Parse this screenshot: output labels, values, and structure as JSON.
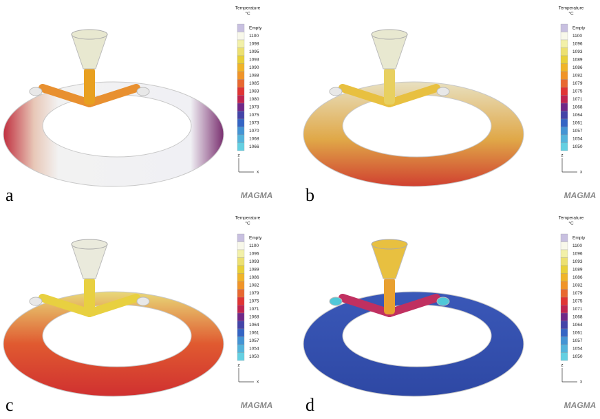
{
  "panels": [
    {
      "label": "a",
      "logo": "MAGMA",
      "axes": {
        "z": "z",
        "x": "x"
      },
      "legend": {
        "title": "Temperature",
        "unit": "°C",
        "entries": [
          "Empty",
          "1100",
          "1098",
          "1095",
          "1093",
          "1090",
          "1088",
          "1085",
          "1083",
          "1080",
          "1078",
          "1075",
          "1073",
          "1070",
          "1068",
          "1066"
        ],
        "colors": [
          "#c8c0e0",
          "#f8f8ea",
          "#f2f0a8",
          "#ece070",
          "#e8d038",
          "#f0b428",
          "#f09428",
          "#e86830",
          "#e03434",
          "#c02450",
          "#702888",
          "#4444a8",
          "#3464c4",
          "#4494d4",
          "#54b4dc",
          "#64d0e2"
        ]
      }
    },
    {
      "label": "b",
      "logo": "MAGMA",
      "axes": {
        "z": "z",
        "x": "x"
      },
      "legend": {
        "title": "Temperature",
        "unit": "°C",
        "entries": [
          "Empty",
          "1100",
          "1096",
          "1093",
          "1089",
          "1086",
          "1082",
          "1079",
          "1075",
          "1071",
          "1068",
          "1064",
          "1061",
          "1057",
          "1054",
          "1050"
        ],
        "colors": [
          "#c8c0e0",
          "#f8f8ea",
          "#f2f0a8",
          "#ece070",
          "#e8d038",
          "#f0b428",
          "#f09428",
          "#e86830",
          "#e03434",
          "#c02450",
          "#702888",
          "#4444a8",
          "#3464c4",
          "#4494d4",
          "#54b4dc",
          "#64d0e2"
        ]
      }
    },
    {
      "label": "c",
      "logo": "MAGMA",
      "axes": {
        "z": "z",
        "x": "x"
      },
      "legend": {
        "title": "Temperature",
        "unit": "°C",
        "entries": [
          "Empty",
          "1100",
          "1096",
          "1093",
          "1089",
          "1086",
          "1082",
          "1079",
          "1075",
          "1071",
          "1068",
          "1064",
          "1061",
          "1057",
          "1054",
          "1050"
        ],
        "colors": [
          "#c8c0e0",
          "#f8f8ea",
          "#f2f0a8",
          "#ece070",
          "#e8d038",
          "#f0b428",
          "#f09428",
          "#e86830",
          "#e03434",
          "#c02450",
          "#702888",
          "#4444a8",
          "#3464c4",
          "#4494d4",
          "#54b4dc",
          "#64d0e2"
        ]
      }
    },
    {
      "label": "d",
      "logo": "MAGMA",
      "axes": {
        "z": "z",
        "x": "x"
      },
      "legend": {
        "title": "Temperature",
        "unit": "°C",
        "entries": [
          "Empty",
          "1100",
          "1096",
          "1093",
          "1089",
          "1086",
          "1082",
          "1079",
          "1075",
          "1071",
          "1068",
          "1064",
          "1061",
          "1057",
          "1054",
          "1050"
        ],
        "colors": [
          "#c8c0e0",
          "#f8f8ea",
          "#f2f0a8",
          "#ece070",
          "#e8d038",
          "#f0b428",
          "#f09428",
          "#e86830",
          "#e03434",
          "#c02450",
          "#702888",
          "#4444a8",
          "#3464c4",
          "#4494d4",
          "#54b4dc",
          "#64d0e2"
        ]
      }
    }
  ]
}
